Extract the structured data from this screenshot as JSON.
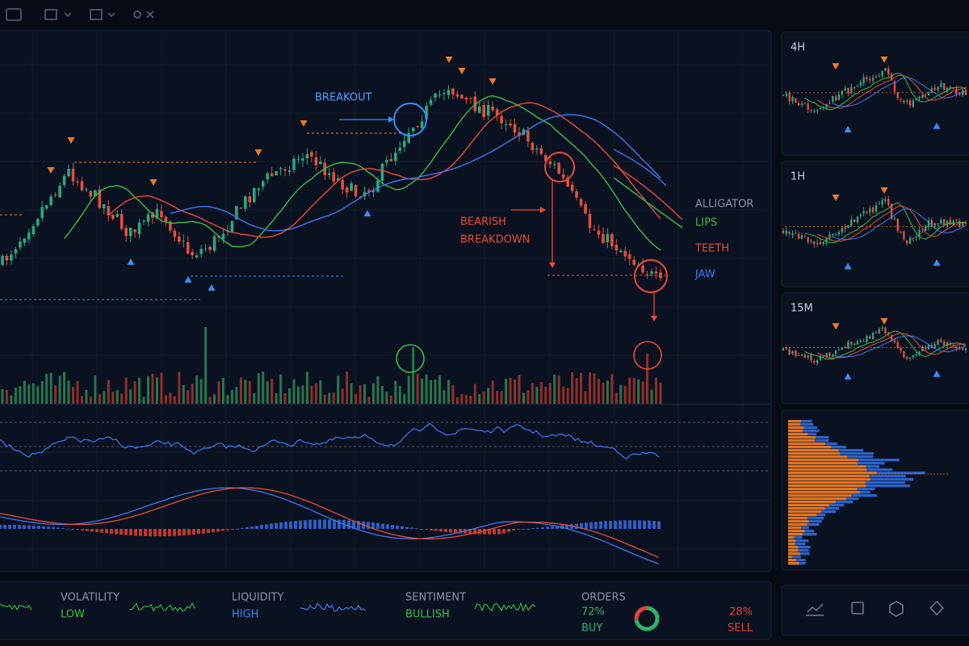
{
  "main_chart": {
    "annotations": {
      "breakout": "BREAKOUT",
      "breakdown": [
        "BEARISH",
        "BREAKDOWN"
      ]
    },
    "legend": {
      "title": "ALLIGATOR",
      "lines": [
        "LIPS",
        "TEETH",
        "JAW"
      ]
    }
  },
  "timeframes": [
    "4H",
    "1H",
    "15M"
  ],
  "stats": [
    {
      "label": "VOLATILITY",
      "value": "LOW"
    },
    {
      "label": "LIQUIDITY",
      "value": "HIGH"
    },
    {
      "label": "SENTIMENT",
      "value": "BULLISH"
    }
  ],
  "orders": {
    "type": "donut",
    "title": "ORDERS",
    "categories": [
      "BUY",
      "SELL"
    ],
    "values": [
      72,
      28
    ],
    "value_labels": [
      "72%",
      "28%"
    ],
    "colors": [
      "#2fb36a",
      "#e0453a"
    ]
  }
}
